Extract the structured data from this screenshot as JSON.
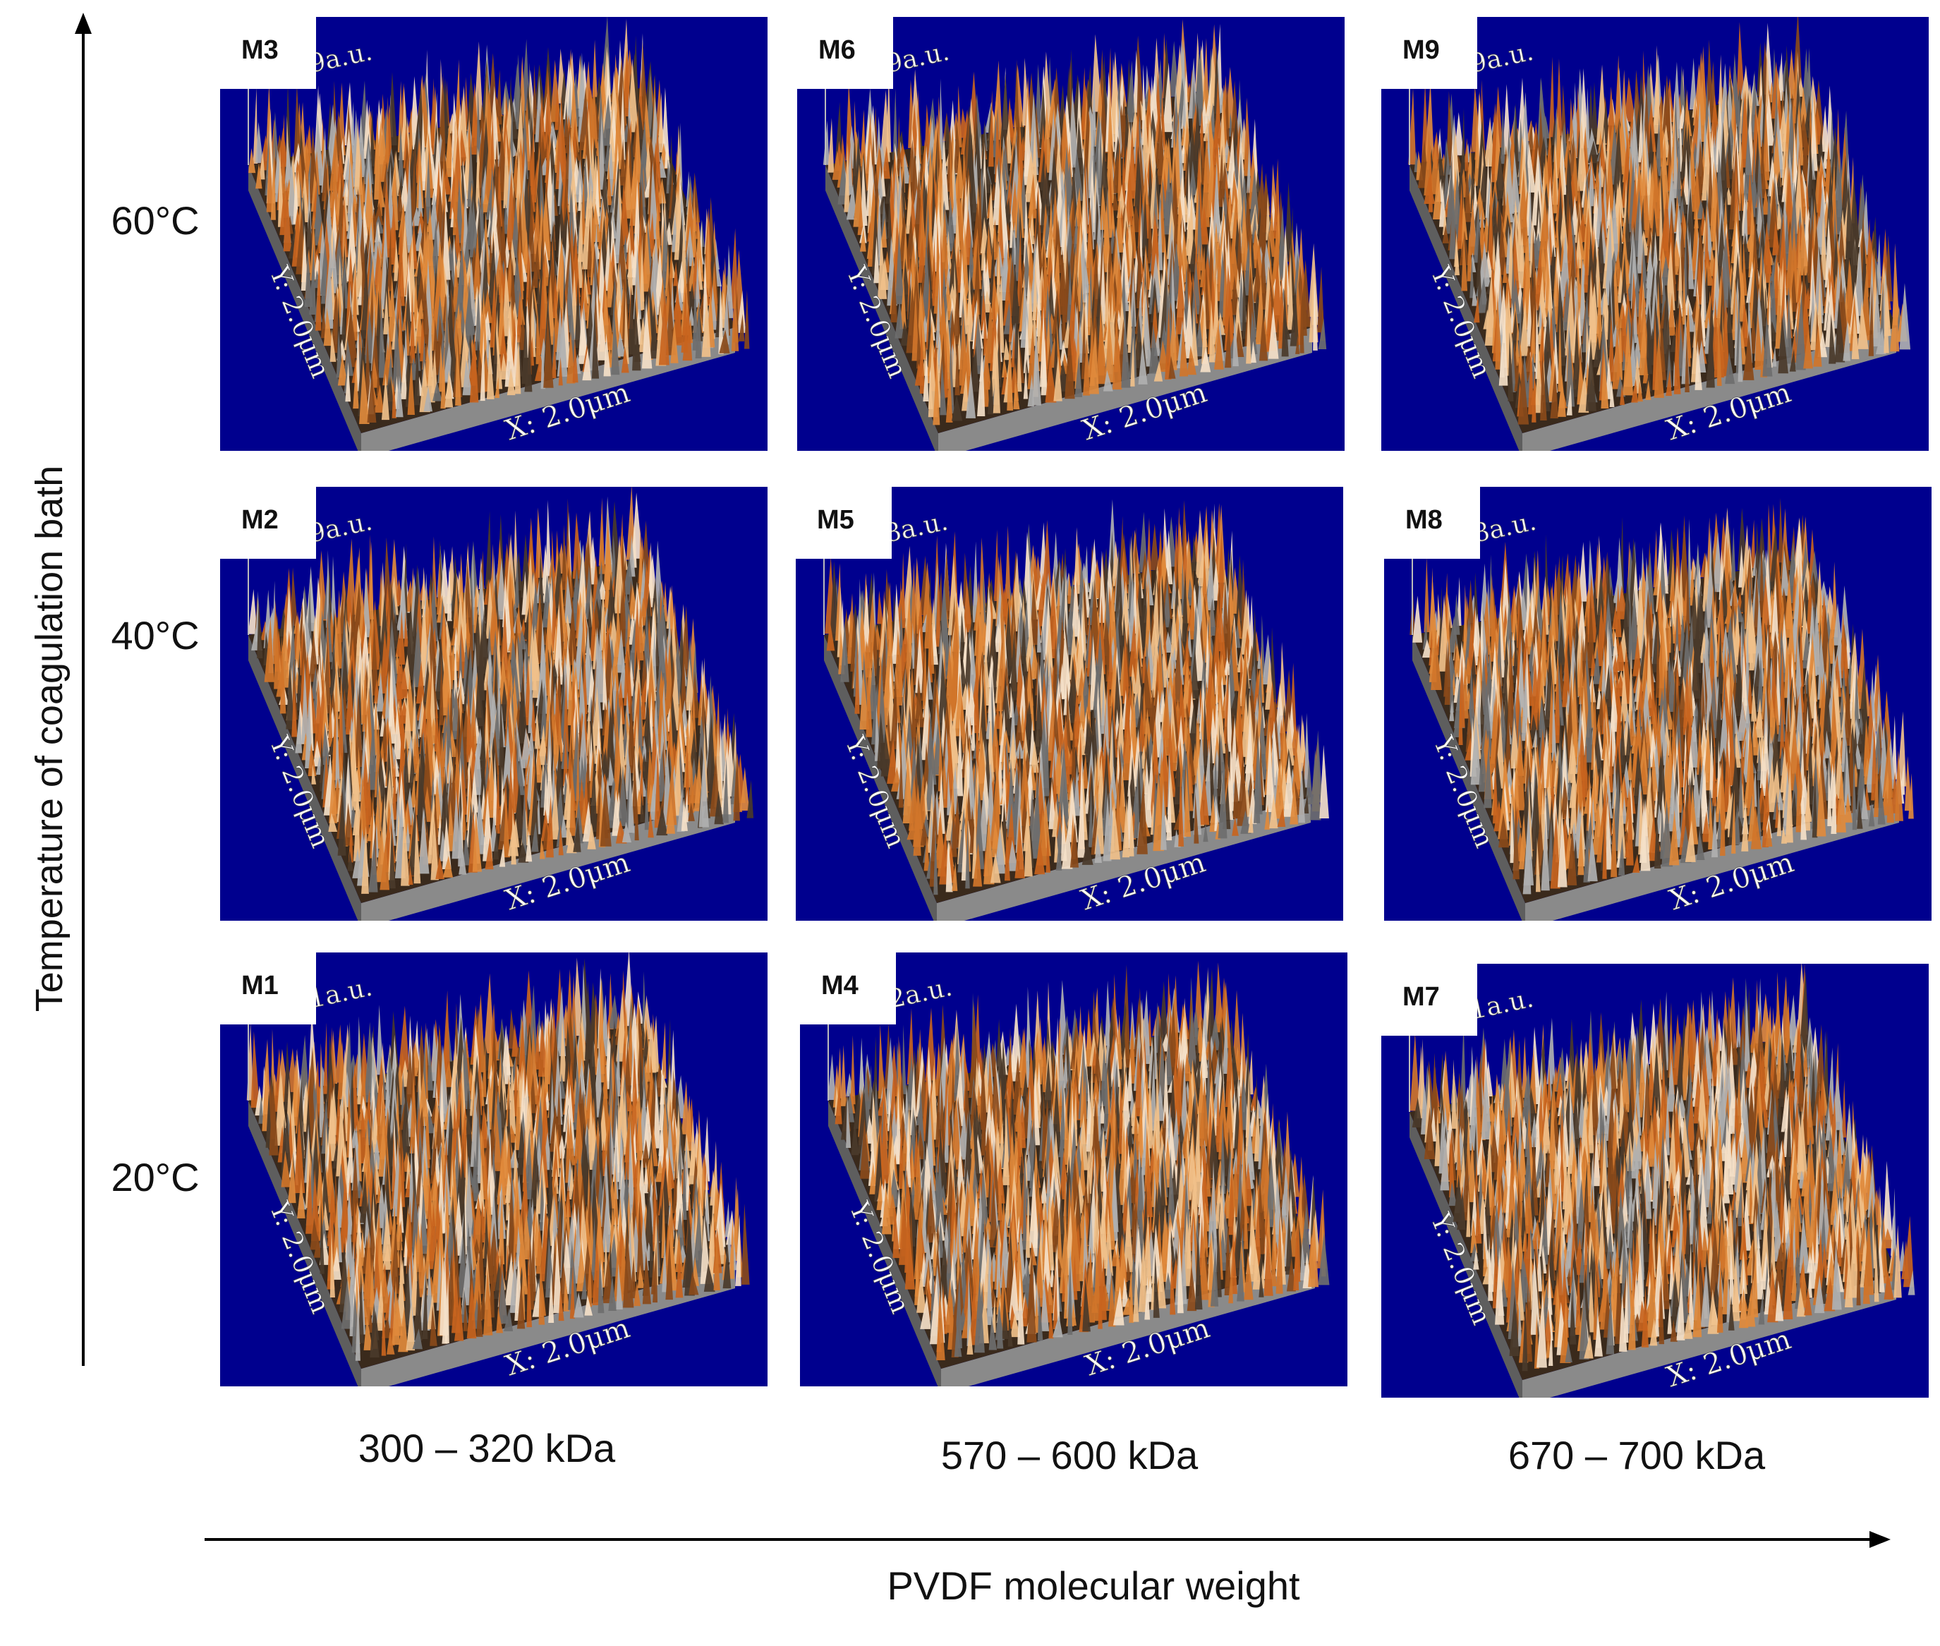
{
  "y_axis_title": "Temperature of coagulation bath",
  "x_axis_title": "PVDF molecular weight",
  "temperatures": [
    "60°C",
    "40°C",
    "20°C"
  ],
  "molecular_weights": [
    "300 – 320 kDa",
    "570 – 600 kDa",
    "670 – 700 kDa"
  ],
  "panels": [
    {
      "id": "M3",
      "z": "Z: 0.9a.u.",
      "y": "Y: 2.0μm",
      "x": "X: 2.0μm"
    },
    {
      "id": "M6",
      "z": "Z: 0.9a.u.",
      "y": "Y: 2.0μm",
      "x": "X: 2.0μm"
    },
    {
      "id": "M9",
      "z": "Z: 0.9a.u.",
      "y": "Y: 2.0μm",
      "x": "X: 2.0μm"
    },
    {
      "id": "M2",
      "z": "Z: 0.9a.u.",
      "y": "Y: 2.0μm",
      "x": "X: 2.0μm"
    },
    {
      "id": "M5",
      "z": "Z: 0.8a.u.",
      "y": "Y: 2.0μm",
      "x": "X: 2.0μm"
    },
    {
      "id": "M8",
      "z": "Z: 0.8a.u.",
      "y": "Y: 2.0μm",
      "x": "X: 2.0μm"
    },
    {
      "id": "M1",
      "z": "Z: 1.1a.u.",
      "y": "Y: 2.0μm",
      "x": "X: 2.0μm"
    },
    {
      "id": "M4",
      "z": "Z: 1.2a.u.",
      "y": "Y: 2.0μm",
      "x": "X: 2.0μm"
    },
    {
      "id": "M7",
      "z": "Z: 1.1a.u.",
      "y": "Y: 2.0μm",
      "x": "X: 2.0μm"
    }
  ],
  "colors": {
    "panel_background": "#00008e",
    "surface_orange": "#c8641e",
    "surface_gray": "#7a7a7a"
  }
}
